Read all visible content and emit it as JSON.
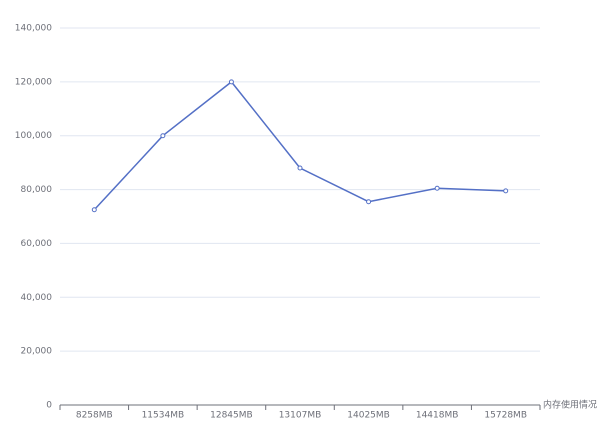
{
  "chart_data": {
    "type": "line",
    "categories": [
      "8258MB",
      "11534MB",
      "12845MB",
      "13107MB",
      "14025MB",
      "14418MB",
      "15728MB"
    ],
    "series": [
      {
        "color": "#5470c6",
        "values": [
          72500,
          100000,
          120000,
          88000,
          75500,
          80500,
          79500
        ]
      }
    ],
    "x_label": "内存使用情况",
    "ylim": [
      0,
      140000
    ],
    "yticks": [
      0,
      {
        "value": 20000,
        "label": "20,000"
      },
      {
        "value": 40000,
        "label": "40,000"
      },
      {
        "value": 60000,
        "label": "60,000"
      },
      {
        "value": 80000,
        "label": "80,000"
      },
      {
        "value": 100000,
        "label": "100,000"
      },
      {
        "value": 120000,
        "label": "120,000"
      },
      {
        "value": 140000,
        "label": "140,000"
      }
    ],
    "grid": true
  }
}
